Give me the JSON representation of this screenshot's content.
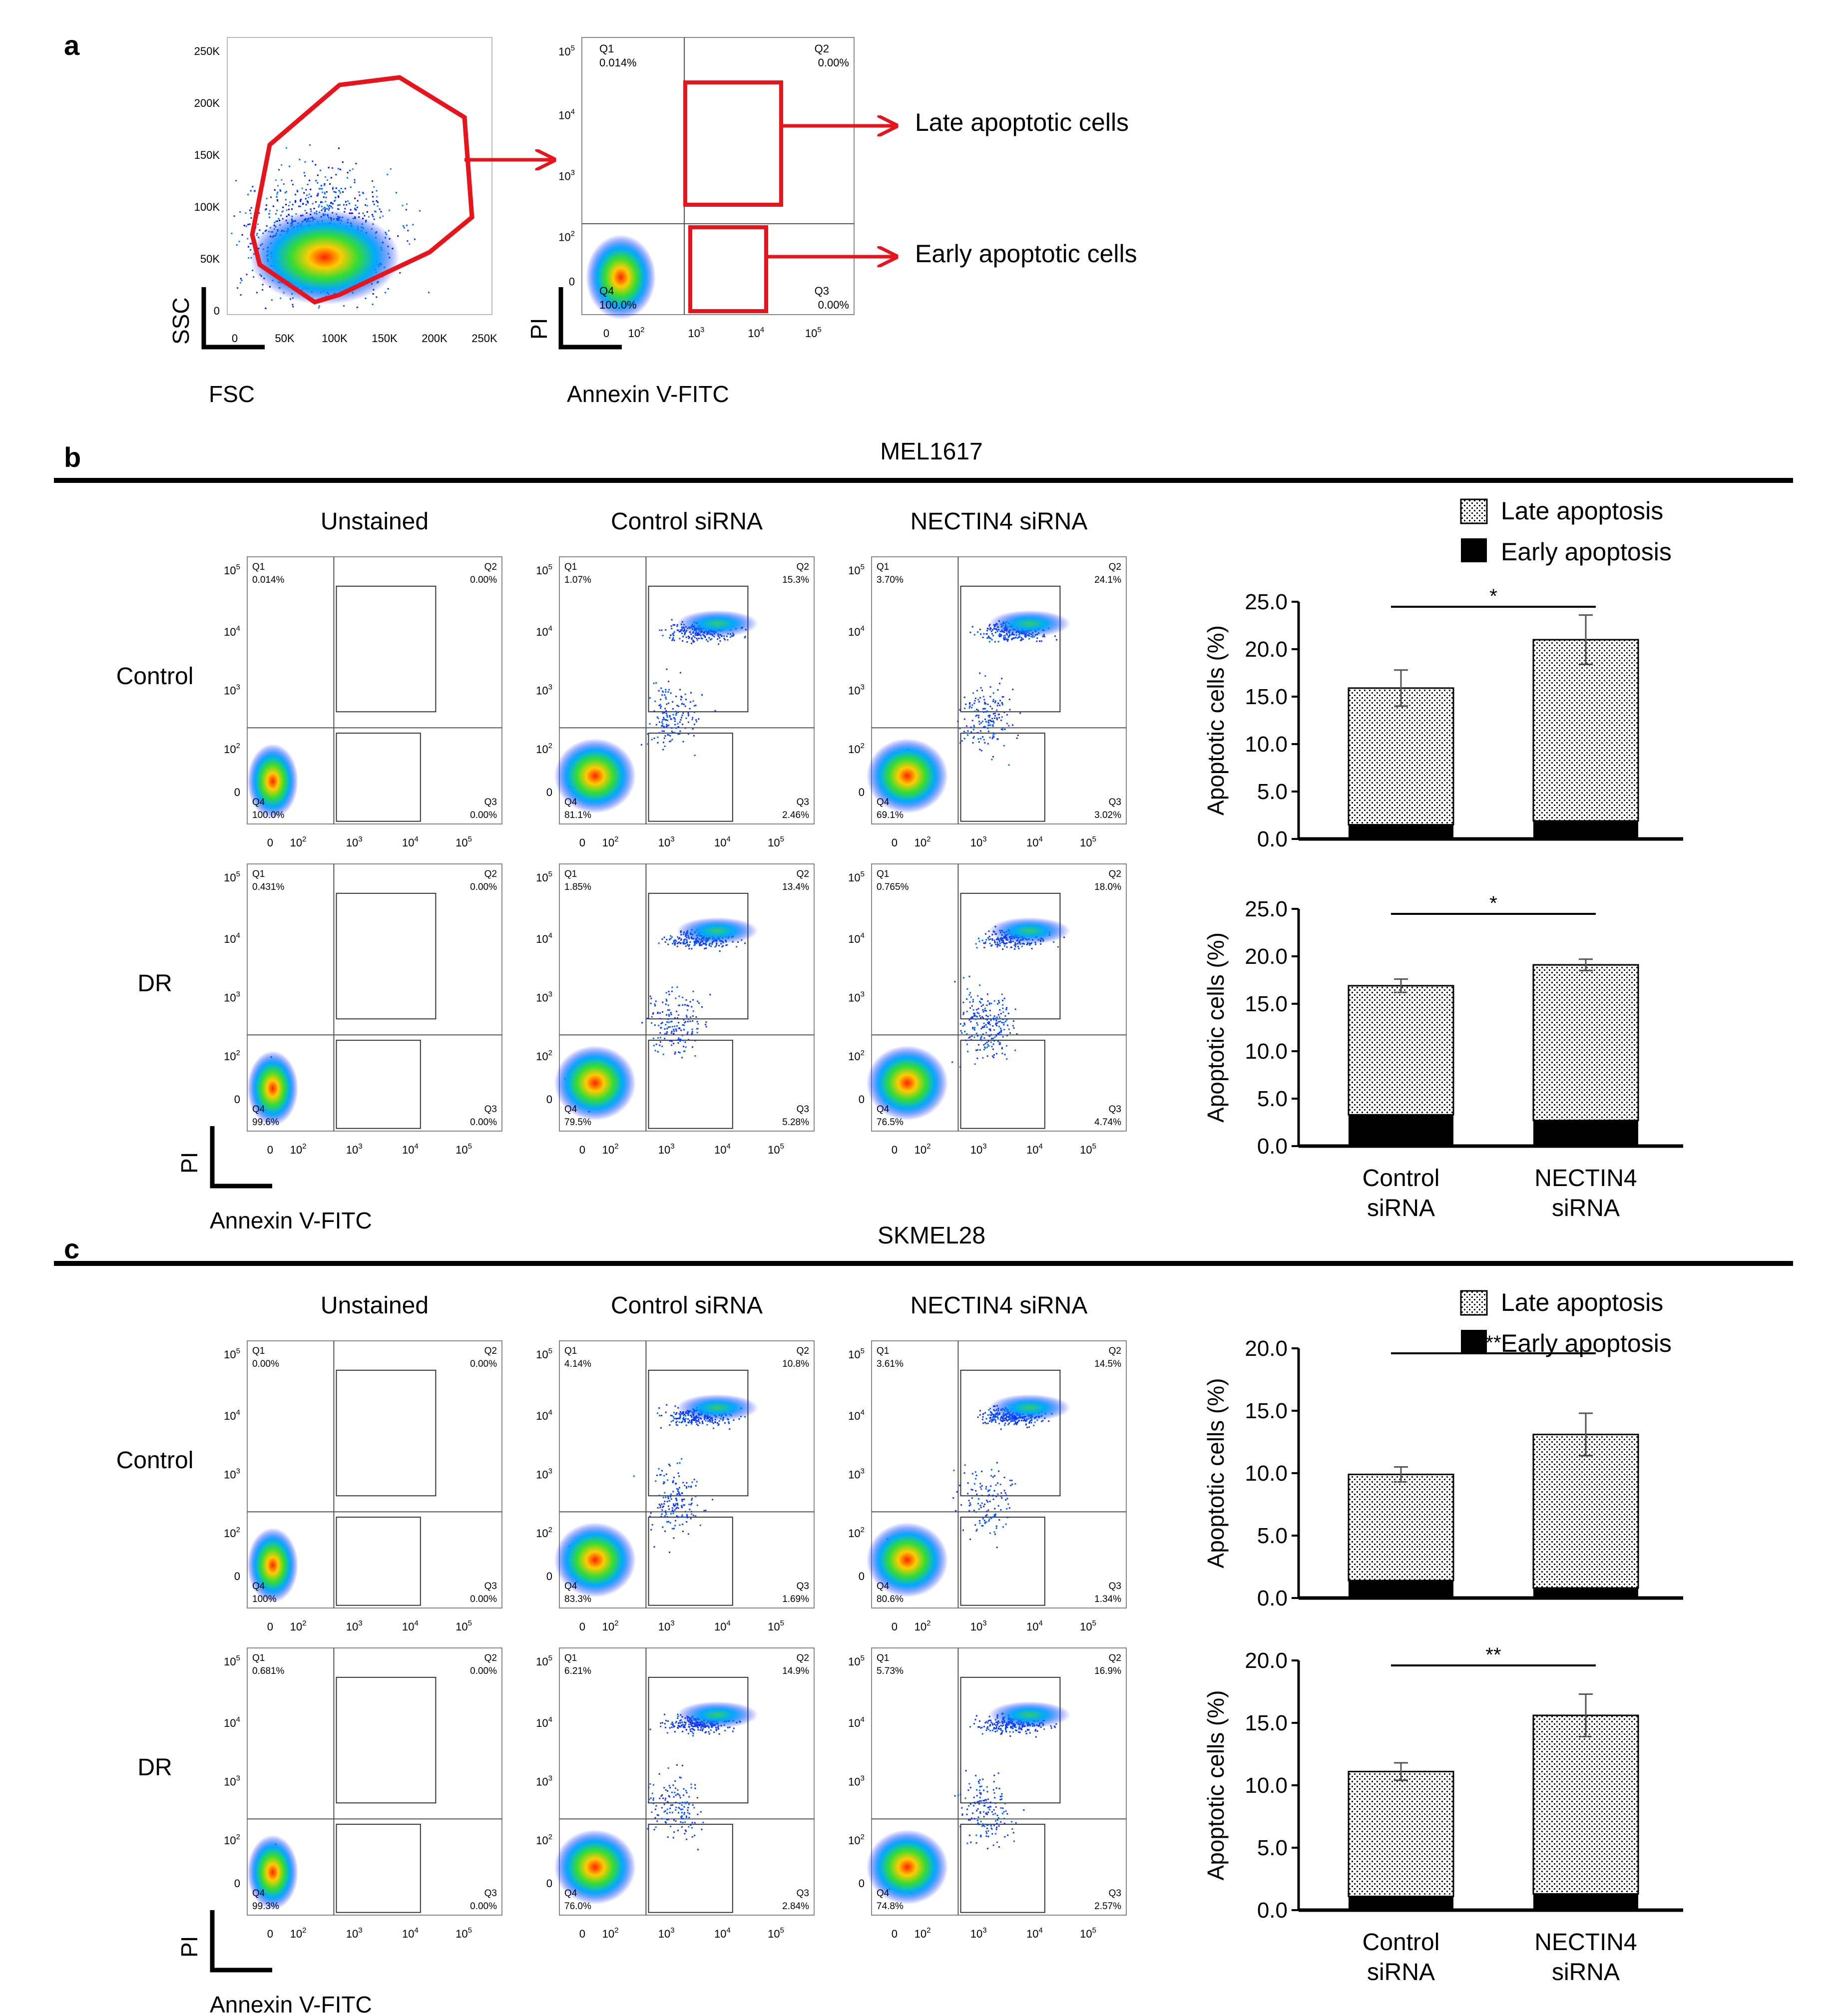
{
  "panel_a": {
    "label": "a",
    "scatter1": {
      "xlabel": "FSC",
      "ylabel": "SSC",
      "xticks": [
        "0",
        "50K",
        "100K",
        "150K",
        "200K",
        "250K"
      ],
      "yticks": [
        "0",
        "50K",
        "100K",
        "150K",
        "200K",
        "250K"
      ]
    },
    "scatter2": {
      "xlabel": "Annexin V-FITC",
      "ylabel": "PI",
      "q1": "Q1",
      "q1v": "0.014%",
      "q2": "Q2",
      "q2v": "0.00%",
      "q3": "Q3",
      "q3v": "0.00%",
      "q4": "Q4",
      "q4v": "100.0%"
    },
    "late_label": "Late apoptotic cells",
    "early_label": "Early apoptotic cells"
  },
  "panel_b": {
    "label": "b",
    "title": "MEL1617",
    "col_headers": [
      "Unstained",
      "Control siRNA",
      "NECTIN4 siRNA"
    ],
    "row_labels": [
      "Control",
      "DR"
    ],
    "axis_x": "Annexin V-FITC",
    "axis_y": "PI",
    "quadrants": [
      [
        [
          "0.014%",
          "0.00%",
          "0.00%",
          "100.0%"
        ],
        [
          "1.07%",
          "15.3%",
          "2.46%",
          "81.1%"
        ],
        [
          "3.70%",
          "24.1%",
          "3.02%",
          "69.1%"
        ]
      ],
      [
        [
          "0.431%",
          "0.00%",
          "0.00%",
          "99.6%"
        ],
        [
          "1.85%",
          "13.4%",
          "5.28%",
          "79.5%"
        ],
        [
          "0.765%",
          "18.0%",
          "4.74%",
          "76.5%"
        ]
      ]
    ]
  },
  "panel_c": {
    "label": "c",
    "title": "SKMEL28",
    "col_headers": [
      "Unstained",
      "Control siRNA",
      "NECTIN4 siRNA"
    ],
    "row_labels": [
      "Control",
      "DR"
    ],
    "axis_x": "Annexin V-FITC",
    "axis_y": "PI",
    "quadrants": [
      [
        [
          "0.00%",
          "0.00%",
          "0.00%",
          "100%"
        ],
        [
          "4.14%",
          "10.8%",
          "1.69%",
          "83.3%"
        ],
        [
          "3.61%",
          "14.5%",
          "1.34%",
          "80.6%"
        ]
      ],
      [
        [
          "0.681%",
          "0.00%",
          "0.00%",
          "99.3%"
        ],
        [
          "6.21%",
          "14.9%",
          "2.84%",
          "76.0%"
        ],
        [
          "5.73%",
          "16.9%",
          "2.57%",
          "74.8%"
        ]
      ]
    ]
  },
  "flow_axis": {
    "xticks": [
      "0",
      "10",
      "10",
      "10",
      "10"
    ],
    "xexp": [
      "",
      "2",
      "3",
      "4",
      "5"
    ],
    "yticks": [
      "10",
      "10",
      "10",
      "10",
      "0"
    ],
    "yexp": [
      "5",
      "4",
      "3",
      "2",
      ""
    ]
  },
  "quad_names": [
    "Q1",
    "Q2",
    "Q3",
    "Q4"
  ],
  "legend": {
    "late": "Late apoptosis",
    "early": "Early apoptosis"
  },
  "bar_axis_label": "Apoptotic cells  (%)",
  "bar_axis_label_c": "Apoptotic cells (%)",
  "bar_categories": [
    "Control siRNA",
    "NECTIN4 siRNA"
  ],
  "bar_cat_lines": [
    [
      "Control",
      "siRNA"
    ],
    [
      "NECTIN4",
      "siRNA"
    ]
  ],
  "chart_data": [
    {
      "type": "bar",
      "id": "b-control",
      "stacked": true,
      "categories": [
        "Control siRNA",
        "NECTIN4 siRNA"
      ],
      "series": [
        {
          "name": "Early apoptosis",
          "values": [
            1.5,
            1.9
          ]
        },
        {
          "name": "Late apoptosis",
          "values": [
            14.4,
            19.1
          ]
        }
      ],
      "errors": [
        1.9,
        2.6
      ],
      "ylim": [
        0,
        25
      ],
      "yticks": [
        "0.0",
        "5.0",
        "10.0",
        "15.0",
        "20.0",
        "25.0"
      ],
      "significance": "*",
      "ylabel": "Apoptotic cells  (%)"
    },
    {
      "type": "bar",
      "id": "b-dr",
      "stacked": true,
      "categories": [
        "Control siRNA",
        "NECTIN4 siRNA"
      ],
      "series": [
        {
          "name": "Early apoptosis",
          "values": [
            3.3,
            2.7
          ]
        },
        {
          "name": "Late apoptosis",
          "values": [
            13.6,
            16.4
          ]
        }
      ],
      "errors": [
        0.7,
        0.6
      ],
      "ylim": [
        0,
        25
      ],
      "yticks": [
        "0.0",
        "5.0",
        "10.0",
        "15.0",
        "20.0",
        "25.0"
      ],
      "significance": "*",
      "ylabel": "Apoptotic cells  (%)"
    },
    {
      "type": "bar",
      "id": "c-control",
      "stacked": true,
      "categories": [
        "Control siRNA",
        "NECTIN4 siRNA"
      ],
      "series": [
        {
          "name": "Early apoptosis",
          "values": [
            1.4,
            0.8
          ]
        },
        {
          "name": "Late apoptosis",
          "values": [
            8.5,
            12.3
          ]
        }
      ],
      "errors": [
        0.6,
        1.7
      ],
      "ylim": [
        0,
        20
      ],
      "yticks": [
        "0.0",
        "5.0",
        "10.0",
        "15.0",
        "20.0"
      ],
      "significance": "**",
      "ylabel": "Apoptotic cells (%)"
    },
    {
      "type": "bar",
      "id": "c-dr",
      "stacked": true,
      "categories": [
        "Control siRNA",
        "NECTIN4 siRNA"
      ],
      "series": [
        {
          "name": "Early apoptosis",
          "values": [
            1.1,
            1.3
          ]
        },
        {
          "name": "Late apoptosis",
          "values": [
            10.0,
            14.3
          ]
        }
      ],
      "errors": [
        0.7,
        1.7
      ],
      "ylim": [
        0,
        20
      ],
      "yticks": [
        "0.0",
        "5.0",
        "10.0",
        "15.0",
        "20.0"
      ],
      "significance": "**",
      "ylabel": "Apoptotic cells (%)"
    }
  ]
}
